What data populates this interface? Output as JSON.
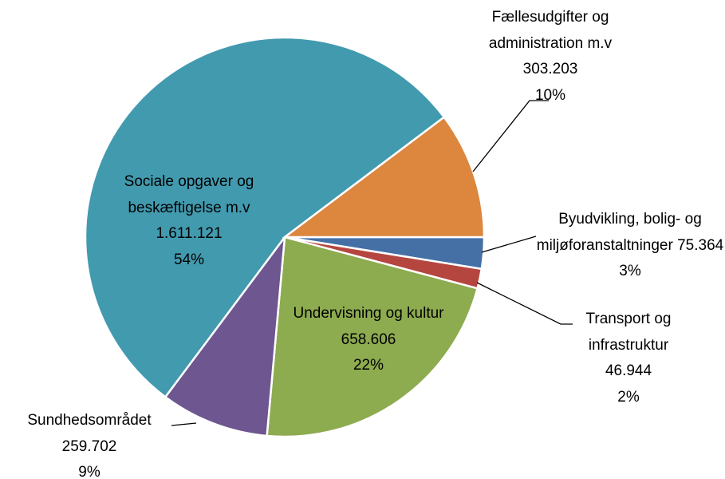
{
  "chart_data": {
    "type": "pie",
    "categories": [
      "Byudvikling, bolig- og miljøforanstaltninger",
      "Transport og infrastruktur",
      "Undervisning og kultur",
      "Sundhedsområdet",
      "Sociale opgaver og beskæftigelse m.v",
      "Fællesudgifter og administration m.v"
    ],
    "values": [
      75364,
      46944,
      658606,
      259702,
      1611121,
      303203
    ],
    "value_labels": [
      "75.364",
      "46.944",
      "658.606",
      "259.702",
      "1.611.121",
      "303.203"
    ],
    "percentages": [
      3,
      2,
      22,
      9,
      54,
      10
    ],
    "percentage_labels": [
      "3%",
      "2%",
      "22%",
      "9%",
      "54%",
      "10%"
    ],
    "colors": [
      "#4470a6",
      "#b5463f",
      "#8dab4f",
      "#6e5690",
      "#429aaf",
      "#dc863e"
    ]
  }
}
